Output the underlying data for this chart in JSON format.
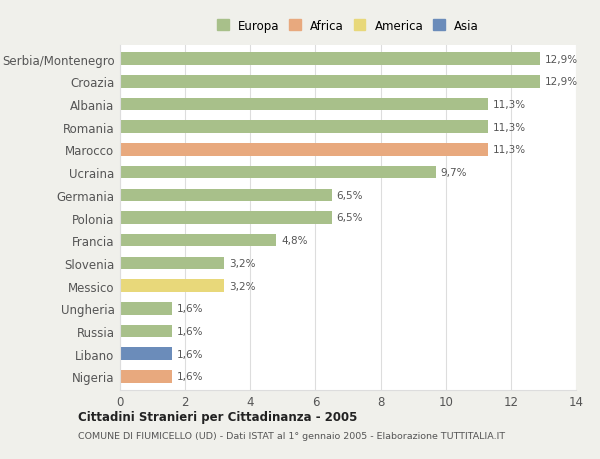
{
  "categories": [
    "Nigeria",
    "Libano",
    "Russia",
    "Ungheria",
    "Messico",
    "Slovenia",
    "Francia",
    "Polonia",
    "Germania",
    "Ucraina",
    "Marocco",
    "Romania",
    "Albania",
    "Croazia",
    "Serbia/Montenegro"
  ],
  "values": [
    1.6,
    1.6,
    1.6,
    1.6,
    3.2,
    3.2,
    4.8,
    6.5,
    6.5,
    9.7,
    11.3,
    11.3,
    11.3,
    12.9,
    12.9
  ],
  "colors": [
    "#e8a97e",
    "#6b8cba",
    "#a8c08a",
    "#a8c08a",
    "#e8d87a",
    "#a8c08a",
    "#a8c08a",
    "#a8c08a",
    "#a8c08a",
    "#a8c08a",
    "#e8a97e",
    "#a8c08a",
    "#a8c08a",
    "#a8c08a",
    "#a8c08a"
  ],
  "labels": [
    "1,6%",
    "1,6%",
    "1,6%",
    "1,6%",
    "3,2%",
    "3,2%",
    "4,8%",
    "6,5%",
    "6,5%",
    "9,7%",
    "11,3%",
    "11,3%",
    "11,3%",
    "12,9%",
    "12,9%"
  ],
  "legend_labels": [
    "Europa",
    "Africa",
    "America",
    "Asia"
  ],
  "legend_colors": [
    "#a8c08a",
    "#e8a97e",
    "#e8d87a",
    "#6b8cba"
  ],
  "title": "Cittadini Stranieri per Cittadinanza - 2005",
  "subtitle": "COMUNE DI FIUMICELLO (UD) - Dati ISTAT al 1° gennaio 2005 - Elaborazione TUTTITALIA.IT",
  "xlim": [
    0,
    14
  ],
  "xticks": [
    0,
    2,
    4,
    6,
    8,
    10,
    12,
    14
  ],
  "outer_bg": "#f0f0eb",
  "plot_bg": "#ffffff",
  "grid_color": "#dddddd"
}
